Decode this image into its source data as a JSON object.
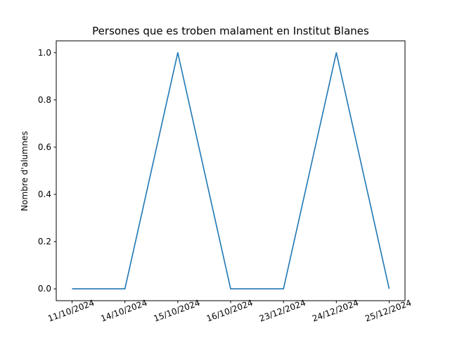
{
  "chart_data": {
    "type": "line",
    "title": "Persones que es troben malament en Institut Blanes",
    "xlabel": "",
    "ylabel": "Nombre d'alumnes",
    "categories": [
      "11/10/2024",
      "14/10/2024",
      "15/10/2024",
      "16/10/2024",
      "23/12/2024",
      "24/12/2024",
      "25/12/2024"
    ],
    "series": [
      {
        "values": [
          0,
          0,
          1,
          0,
          0,
          1,
          0
        ],
        "color": "#1f77b4"
      }
    ],
    "ylim": [
      -0.05,
      1.05
    ],
    "yticks": [
      "0.0",
      "0.2",
      "0.4",
      "0.6",
      "0.8",
      "1.0"
    ],
    "grid": false,
    "legend": "none"
  }
}
